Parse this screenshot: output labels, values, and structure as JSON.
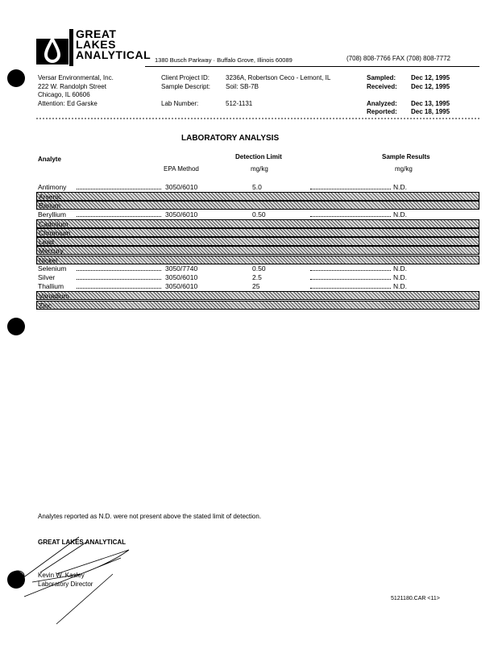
{
  "letterhead": {
    "logo_text": [
      "GREAT",
      "LAKES",
      "ANALYTICAL"
    ],
    "address": "1380 Busch Parkway · Buffalo Grove, Illinois 60089",
    "phone": "(708) 808-7766  FAX (708) 808-7772"
  },
  "client": {
    "company": "Versar Environmental, Inc.",
    "street": "222 W. Randolph Street",
    "city": "Chicago, IL  60606",
    "attention": "Attention:  Ed Garske"
  },
  "project": {
    "project_id_label": "Client Project ID:",
    "project_id": "3236A, Robertson Ceco - Lemont, IL",
    "sample_desc_label": "Sample Descript:",
    "sample_desc": "Soil: SB-7B",
    "lab_number_label": "Lab Number:",
    "lab_number": "512-1131"
  },
  "dates": {
    "sampled_label": "Sampled:",
    "sampled": "Dec 12, 1995",
    "received_label": "Received:",
    "received": "Dec 12, 1995",
    "analyzed_label": "Analyzed:",
    "analyzed": "Dec 13, 1995",
    "reported_label": "Reported:",
    "reported": "Dec 18, 1995"
  },
  "report": {
    "title": "LABORATORY ANALYSIS",
    "headers": {
      "analyte": "Analyte",
      "epa_method": "EPA Method",
      "detection_limit": "Detection Limit",
      "dl_units": "mg/kg",
      "sample_results": "Sample Results",
      "sr_units": "mg/kg"
    },
    "rows": [
      {
        "analyte": "Antimony",
        "method": "3050/6010",
        "limit": "5.0",
        "result": "N.D.",
        "shaded": false
      },
      {
        "analyte": "Arsenic",
        "method": "",
        "limit": "",
        "result": "",
        "shaded": true
      },
      {
        "analyte": "Barium",
        "method": "",
        "limit": "",
        "result": "",
        "shaded": true
      },
      {
        "analyte": "Beryllium",
        "method": "3050/6010",
        "limit": "0.50",
        "result": "N.D.",
        "shaded": false
      },
      {
        "analyte": "Cadmium",
        "method": "",
        "limit": "",
        "result": "",
        "shaded": true
      },
      {
        "analyte": "Chromium",
        "method": "",
        "limit": "",
        "result": "",
        "shaded": true
      },
      {
        "analyte": "Lead",
        "method": "",
        "limit": "",
        "result": "",
        "shaded": true
      },
      {
        "analyte": "Mercury",
        "method": "",
        "limit": "",
        "result": "",
        "shaded": true
      },
      {
        "analyte": "Nickel",
        "method": "",
        "limit": "",
        "result": "",
        "shaded": true
      },
      {
        "analyte": "Selenium",
        "method": "3050/7740",
        "limit": "0.50",
        "result": "N.D.",
        "shaded": false
      },
      {
        "analyte": "Silver",
        "method": "3050/6010",
        "limit": "2.5",
        "result": "N.D.",
        "shaded": false
      },
      {
        "analyte": "Thallium",
        "method": "3050/6010",
        "limit": "25",
        "result": "N.D.",
        "shaded": false
      },
      {
        "analyte": "Vanadium",
        "method": "",
        "limit": "",
        "result": "",
        "shaded": true
      },
      {
        "analyte": "Zinc",
        "method": "",
        "limit": "",
        "result": "",
        "shaded": true
      }
    ]
  },
  "footer": {
    "note": "Analytes reported as N.D. were not present above the stated limit of detection.",
    "company": "GREAT LAKES ANALYTICAL",
    "signer": "Kevin W. Kasley",
    "signer_title": "Laboratory Director",
    "file_ref": "5121180.CAR  <11>"
  }
}
